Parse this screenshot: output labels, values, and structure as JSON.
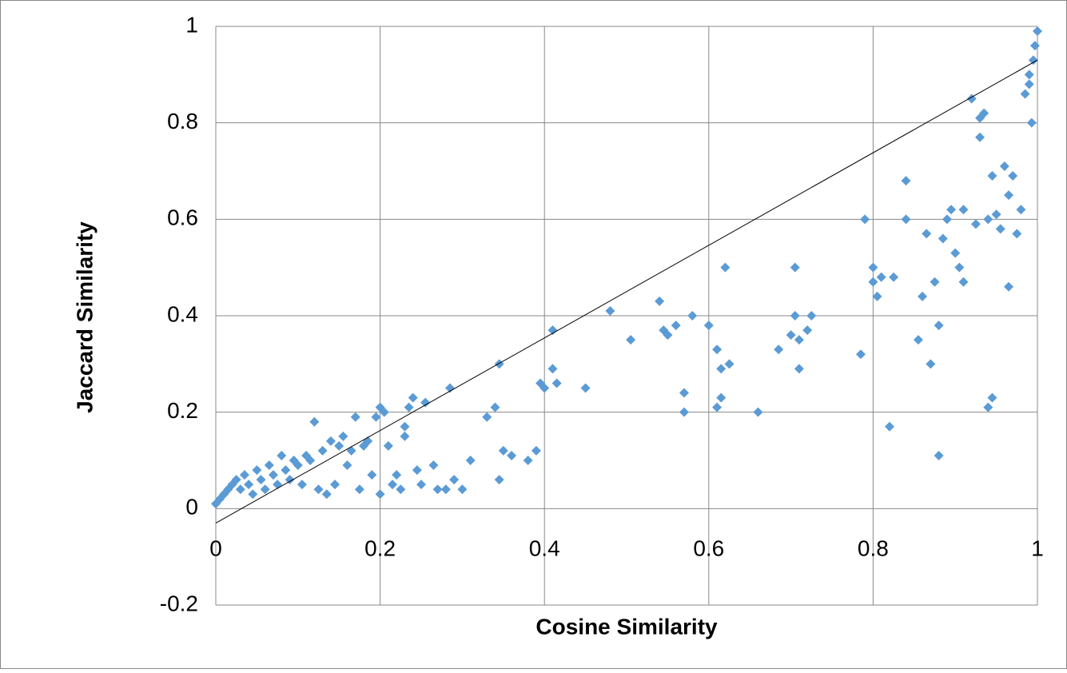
{
  "chart_data": {
    "type": "scatter",
    "x_label": "Cosine Similarity",
    "y_label": "Jaccard Similarity",
    "xlim": [
      0,
      1
    ],
    "xticks": [
      0,
      0.2,
      0.4,
      0.6,
      0.8,
      1
    ],
    "ylim": [
      -0.2,
      1
    ],
    "yticks": [
      -0.2,
      0,
      0.2,
      0.4,
      0.6,
      0.8,
      1
    ],
    "grid": true,
    "series": [
      {
        "color": "#5b9bd5",
        "x": [
          0,
          0.005,
          0.01,
          0.015,
          0.02,
          0.025,
          0.03,
          0.035,
          0.04,
          0.045,
          0.05,
          0.055,
          0.06,
          0.065,
          0.07,
          0.075,
          0.08,
          0.085,
          0.09,
          0.095,
          0.1,
          0.105,
          0.11,
          0.115,
          0.12,
          0.125,
          0.13,
          0.135,
          0.14,
          0.145,
          0.15,
          0.155,
          0.16,
          0.165,
          0.17,
          0.175,
          0.18,
          0.185,
          0.19,
          0.195,
          0.2,
          0.2,
          0.205,
          0.21,
          0.215,
          0.22,
          0.225,
          0.23,
          0.23,
          0.235,
          0.24,
          0.245,
          0.25,
          0.255,
          0.265,
          0.27,
          0.28,
          0.285,
          0.29,
          0.3,
          0.31,
          0.33,
          0.34,
          0.345,
          0.35,
          0.345,
          0.36,
          0.38,
          0.39,
          0.395,
          0.4,
          0.41,
          0.41,
          0.415,
          0.45,
          0.48,
          0.505,
          0.54,
          0.545,
          0.55,
          0.56,
          0.57,
          0.57,
          0.58,
          0.6,
          0.61,
          0.61,
          0.615,
          0.615,
          0.62,
          0.625,
          0.66,
          0.685,
          0.7,
          0.705,
          0.705,
          0.71,
          0.71,
          0.72,
          0.725,
          0.785,
          0.79,
          0.8,
          0.8,
          0.805,
          0.81,
          0.82,
          0.825,
          0.84,
          0.84,
          0.855,
          0.86,
          0.865,
          0.87,
          0.875,
          0.88,
          0.88,
          0.885,
          0.89,
          0.895,
          0.9,
          0.905,
          0.91,
          0.91,
          0.92,
          0.925,
          0.93,
          0.93,
          0.935,
          0.94,
          0.94,
          0.945,
          0.945,
          0.95,
          0.955,
          0.96,
          0.965,
          0.965,
          0.97,
          0.975,
          0.98,
          0.985,
          0.99,
          0.99,
          0.993,
          0.995,
          0.997,
          1
        ],
        "values": [
          0.01,
          0.02,
          0.03,
          0.04,
          0.05,
          0.06,
          0.04,
          0.07,
          0.05,
          0.03,
          0.08,
          0.06,
          0.04,
          0.09,
          0.07,
          0.05,
          0.11,
          0.08,
          0.06,
          0.1,
          0.09,
          0.05,
          0.11,
          0.1,
          0.18,
          0.04,
          0.12,
          0.03,
          0.14,
          0.05,
          0.13,
          0.15,
          0.09,
          0.12,
          0.19,
          0.04,
          0.13,
          0.14,
          0.07,
          0.19,
          0.21,
          0.03,
          0.2,
          0.13,
          0.05,
          0.07,
          0.04,
          0.17,
          0.15,
          0.21,
          0.23,
          0.08,
          0.05,
          0.22,
          0.09,
          0.04,
          0.04,
          0.25,
          0.06,
          0.04,
          0.1,
          0.19,
          0.21,
          0.3,
          0.12,
          0.06,
          0.11,
          0.1,
          0.12,
          0.26,
          0.25,
          0.37,
          0.29,
          0.26,
          0.25,
          0.41,
          0.35,
          0.43,
          0.37,
          0.36,
          0.38,
          0.2,
          0.24,
          0.4,
          0.38,
          0.33,
          0.21,
          0.23,
          0.29,
          0.5,
          0.3,
          0.2,
          0.33,
          0.36,
          0.4,
          0.5,
          0.35,
          0.29,
          0.37,
          0.4,
          0.32,
          0.6,
          0.47,
          0.5,
          0.44,
          0.48,
          0.17,
          0.48,
          0.68,
          0.6,
          0.35,
          0.44,
          0.57,
          0.3,
          0.47,
          0.38,
          0.11,
          0.56,
          0.6,
          0.62,
          0.53,
          0.5,
          0.47,
          0.62,
          0.85,
          0.59,
          0.77,
          0.81,
          0.82,
          0.21,
          0.6,
          0.69,
          0.23,
          0.61,
          0.58,
          0.71,
          0.65,
          0.46,
          0.69,
          0.57,
          0.62,
          0.86,
          0.88,
          0.9,
          0.8,
          0.93,
          0.96,
          0.99
        ]
      }
    ],
    "trendline": {
      "x": [
        0,
        1
      ],
      "values": [
        -0.03,
        0.93
      ],
      "color": "#000000"
    }
  }
}
